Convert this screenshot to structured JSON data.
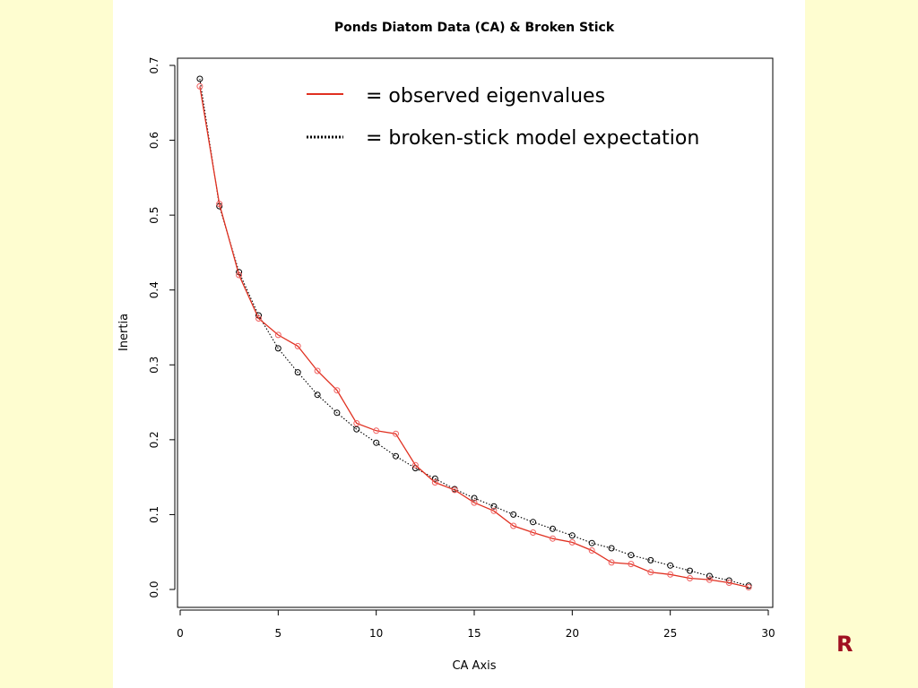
{
  "slide": {
    "logo_text": "R",
    "background_color": "#fefdd0"
  },
  "chart_data": {
    "type": "line",
    "title": "Ponds Diatom Data (CA) & Broken Stick",
    "xlabel": "CA Axis",
    "ylabel": "Inertia",
    "xlim": [
      0,
      30
    ],
    "ylim": [
      0,
      0.7
    ],
    "xticks": [
      "0",
      "5",
      "10",
      "15",
      "20",
      "25",
      "30"
    ],
    "yticks": [
      "0.0",
      "0.1",
      "0.2",
      "0.3",
      "0.4",
      "0.5",
      "0.6",
      "0.7"
    ],
    "legend_position": "top-center",
    "grid": false,
    "x": [
      1,
      2,
      3,
      4,
      5,
      6,
      7,
      8,
      9,
      10,
      11,
      12,
      13,
      14,
      15,
      16,
      17,
      18,
      19,
      20,
      21,
      22,
      23,
      24,
      25,
      26,
      27,
      28,
      29
    ],
    "series": [
      {
        "name": "= observed eigenvalues",
        "color": "#e03020",
        "line_style": "solid",
        "values": [
          0.672,
          0.515,
          0.42,
          0.362,
          0.34,
          0.325,
          0.292,
          0.266,
          0.222,
          0.212,
          0.208,
          0.166,
          0.143,
          0.133,
          0.116,
          0.105,
          0.085,
          0.076,
          0.068,
          0.063,
          0.052,
          0.036,
          0.034,
          0.023,
          0.02,
          0.015,
          0.013,
          0.009,
          0.003
        ]
      },
      {
        "name": "= broken-stick model expectation",
        "color": "#000000",
        "line_style": "dotted",
        "values": [
          0.682,
          0.512,
          0.424,
          0.366,
          0.322,
          0.29,
          0.26,
          0.236,
          0.214,
          0.196,
          0.178,
          0.162,
          0.148,
          0.134,
          0.122,
          0.111,
          0.1,
          0.09,
          0.081,
          0.072,
          0.062,
          0.055,
          0.046,
          0.039,
          0.032,
          0.025,
          0.018,
          0.012,
          0.005
        ]
      }
    ]
  }
}
